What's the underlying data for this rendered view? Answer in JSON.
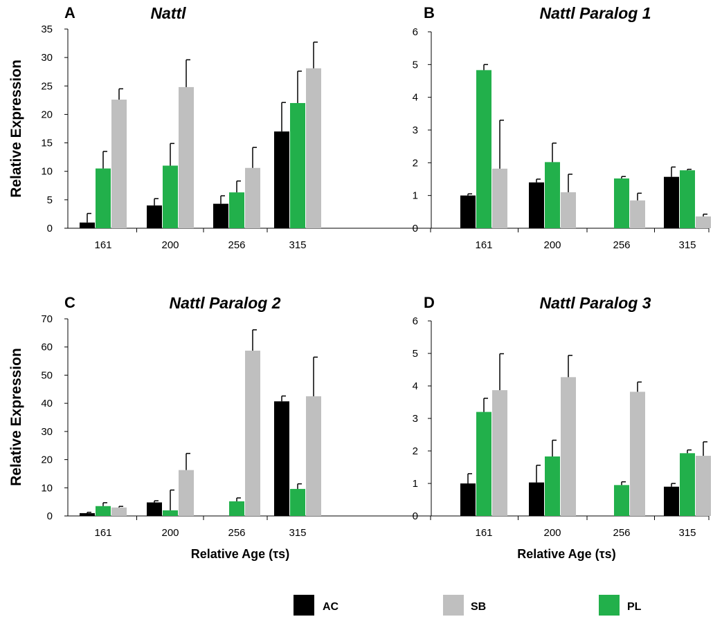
{
  "figure": {
    "legend": [
      {
        "name": "AC",
        "color": "#000000"
      },
      {
        "name": "SB",
        "color": "#bfbfbf"
      },
      {
        "name": "PL",
        "color": "#22b04b"
      }
    ]
  },
  "chart_data": [
    {
      "type": "bar",
      "panel": "A",
      "title": "Nattl",
      "ylabel": "Relative Expression",
      "xlabel": "",
      "categories": [
        "161",
        "200",
        "256",
        "315"
      ],
      "ylim": [
        0,
        35
      ],
      "yticks": [
        0,
        5,
        10,
        15,
        20,
        25,
        30,
        35
      ],
      "series": [
        {
          "name": "AC",
          "values": [
            1.0,
            4.0,
            4.3,
            17.0
          ],
          "errors": [
            1.6,
            1.2,
            1.4,
            5.1
          ]
        },
        {
          "name": "PL",
          "values": [
            10.5,
            11.0,
            6.3,
            22.0
          ],
          "errors": [
            3.0,
            3.9,
            2.0,
            5.6
          ]
        },
        {
          "name": "SB",
          "values": [
            22.6,
            24.8,
            10.6,
            28.1
          ],
          "errors": [
            1.9,
            4.8,
            3.6,
            4.6
          ]
        }
      ]
    },
    {
      "type": "bar",
      "panel": "B",
      "title": "Nattl Paralog 1",
      "ylabel": "",
      "xlabel": "",
      "categories": [
        "161",
        "200",
        "256",
        "315"
      ],
      "ylim": [
        0,
        6
      ],
      "yticks": [
        0,
        1,
        2,
        3,
        4,
        5,
        6
      ],
      "series": [
        {
          "name": "AC",
          "values": [
            1.0,
            1.4,
            0,
            1.57
          ],
          "errors": [
            0.05,
            0.1,
            0,
            0.3
          ]
        },
        {
          "name": "PL",
          "values": [
            4.83,
            2.02,
            1.52,
            1.77
          ],
          "errors": [
            0.17,
            0.58,
            0.06,
            0.03
          ]
        },
        {
          "name": "SB",
          "values": [
            1.82,
            1.1,
            0.85,
            0.36
          ],
          "errors": [
            1.48,
            0.55,
            0.22,
            0.07
          ]
        }
      ]
    },
    {
      "type": "bar",
      "panel": "C",
      "title": "Nattl Paralog 2",
      "ylabel": "Relative Expression",
      "xlabel": "Relative Age (τs)",
      "categories": [
        "161",
        "200",
        "256",
        "315"
      ],
      "ylim": [
        0,
        70
      ],
      "yticks": [
        0,
        10,
        20,
        30,
        40,
        50,
        60,
        70
      ],
      "series": [
        {
          "name": "AC",
          "values": [
            1.0,
            4.8,
            0,
            40.7
          ],
          "errors": [
            0.3,
            0.6,
            0,
            1.9
          ]
        },
        {
          "name": "PL",
          "values": [
            3.5,
            2.0,
            5.2,
            9.6
          ],
          "errors": [
            1.2,
            7.2,
            1.2,
            1.8
          ]
        },
        {
          "name": "SB",
          "values": [
            3.0,
            16.3,
            58.7,
            42.5
          ],
          "errors": [
            0.4,
            5.9,
            7.4,
            13.9
          ]
        }
      ]
    },
    {
      "type": "bar",
      "panel": "D",
      "title": "Nattl Paralog 3",
      "ylabel": "",
      "xlabel": "Relative Age (τs)",
      "categories": [
        "161",
        "200",
        "256",
        "315"
      ],
      "ylim": [
        0,
        6
      ],
      "yticks": [
        0,
        1,
        2,
        3,
        4,
        5,
        6
      ],
      "series": [
        {
          "name": "AC",
          "values": [
            1.0,
            1.03,
            0,
            0.9
          ],
          "errors": [
            0.3,
            0.53,
            0,
            0.1
          ]
        },
        {
          "name": "PL",
          "values": [
            3.2,
            1.83,
            0.95,
            1.93
          ],
          "errors": [
            0.42,
            0.5,
            0.1,
            0.1
          ]
        },
        {
          "name": "SB",
          "values": [
            3.87,
            4.27,
            3.82,
            1.85
          ],
          "errors": [
            1.12,
            0.67,
            0.3,
            0.43
          ]
        }
      ]
    }
  ]
}
